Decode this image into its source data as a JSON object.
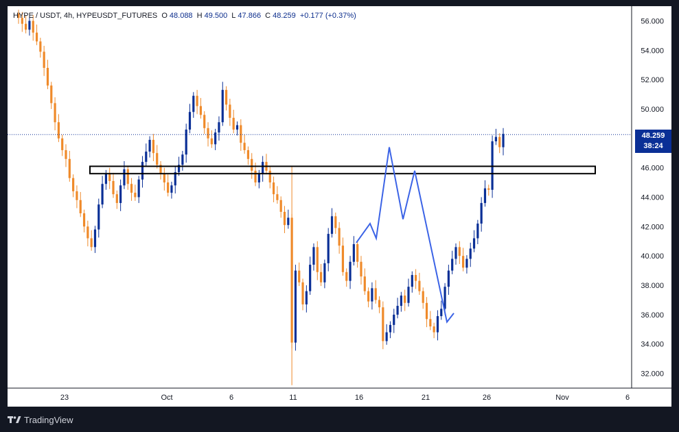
{
  "header": {
    "symbol": "HYPE / USDT, 4h, HYPEUSDT_FUTURES",
    "open_label": "O",
    "open": "48.088",
    "high_label": "H",
    "high": "49.500",
    "low_label": "L",
    "low": "47.866",
    "close_label": "C",
    "close": "48.259",
    "change": "+0.177 (+0.37%)"
  },
  "price_tag": {
    "price": "48.259",
    "countdown": "38:24"
  },
  "footer": {
    "brand": "TradingView"
  },
  "colors": {
    "up": "#0a2f96",
    "down": "#ef8a2a",
    "pattern": "#3b63e6",
    "zone": "#000000",
    "frame": "#131722"
  },
  "chart_data": {
    "type": "candlestick",
    "timeframe": "4h",
    "y_ticks": [
      "56.000",
      "54.000",
      "52.000",
      "50.000",
      "48.000",
      "46.000",
      "44.000",
      "42.000",
      "40.000",
      "38.000",
      "36.000",
      "34.000",
      "32.000"
    ],
    "ylim": [
      31.0,
      57.0
    ],
    "x_ticks": [
      "23",
      "Oct",
      "6",
      "11",
      "16",
      "21",
      "26",
      "Nov",
      "6"
    ],
    "last_price": 48.259,
    "zone": {
      "low": 45.6,
      "high": 46.1
    },
    "pattern_path": [
      [
        40.9
      ],
      [
        42.2
      ],
      [
        41.2
      ],
      [
        47.4
      ],
      [
        42.5
      ],
      [
        45.8
      ],
      [
        35.5
      ],
      [
        36.1
      ]
    ],
    "path_desc": "approximate 4h close path",
    "closes": [
      56.2,
      55.8,
      55.4,
      56.0,
      55.2,
      54.6,
      53.9,
      52.8,
      51.6,
      50.4,
      49.1,
      48.0,
      47.2,
      46.6,
      45.3,
      44.4,
      43.8,
      42.9,
      42.0,
      41.2,
      40.6,
      41.8,
      43.5,
      44.9,
      45.6,
      45.1,
      44.2,
      43.6,
      44.8,
      45.9,
      44.9,
      44.3,
      44.0,
      45.2,
      46.4,
      47.1,
      47.9,
      47.0,
      46.2,
      45.6,
      45.0,
      44.3,
      44.8,
      45.7,
      46.2,
      46.9,
      48.6,
      49.8,
      50.9,
      50.2,
      49.6,
      48.7,
      48.0,
      47.6,
      48.4,
      49.1,
      51.3,
      50.3,
      49.4,
      48.6,
      48.9,
      47.7,
      47.2,
      46.6,
      45.8,
      45.0,
      45.6,
      46.4,
      45.8,
      45.0,
      44.2,
      43.8,
      43.0,
      42.1,
      42.6,
      34.1,
      39.0,
      38.2,
      36.7,
      37.6,
      39.4,
      40.6,
      38.9,
      38.2,
      39.5,
      41.5,
      42.7,
      41.9,
      40.7,
      38.9,
      38.3,
      39.6,
      40.8,
      39.6,
      38.6,
      37.6,
      36.9,
      37.8,
      37.0,
      36.5,
      34.2,
      34.8,
      35.3,
      36.0,
      36.6,
      37.3,
      36.8,
      37.9,
      38.7,
      38.3,
      37.6,
      36.8,
      35.7,
      35.2,
      34.8,
      35.9,
      36.4,
      37.9,
      39.0,
      39.8,
      40.6,
      40.0,
      39.2,
      39.8,
      40.5,
      41.2,
      42.2,
      43.6,
      44.6,
      44.5,
      47.8,
      48.1,
      47.4,
      48.3
    ]
  }
}
